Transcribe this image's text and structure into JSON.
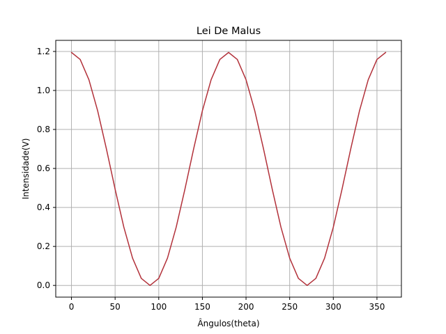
{
  "chart_data": {
    "type": "line",
    "title": "Lei De Malus",
    "xlabel": "Ângulos(theta)",
    "ylabel": "Intensidade(V)",
    "xlim": [
      -18,
      378
    ],
    "ylim": [
      -0.06,
      1.257
    ],
    "xticks": [
      0,
      50,
      100,
      150,
      200,
      250,
      300,
      350
    ],
    "yticks": [
      0.0,
      0.2,
      0.4,
      0.6,
      0.8,
      1.0,
      1.2
    ],
    "xtick_labels": [
      "0",
      "50",
      "100",
      "150",
      "200",
      "250",
      "300",
      "350"
    ],
    "ytick_labels": [
      "0.0",
      "0.2",
      "0.4",
      "0.6",
      "0.8",
      "1.0",
      "1.2"
    ],
    "grid": true,
    "series": [
      {
        "color": "#b2313a",
        "x": [
          0,
          10,
          20,
          30,
          40,
          50,
          60,
          70,
          80,
          90,
          100,
          110,
          120,
          130,
          140,
          150,
          160,
          170,
          180,
          190,
          200,
          210,
          220,
          230,
          240,
          250,
          260,
          270,
          280,
          290,
          300,
          310,
          320,
          330,
          340,
          350,
          360
        ],
        "y": [
          1.195,
          1.159,
          1.055,
          0.896,
          0.701,
          0.494,
          0.299,
          0.14,
          0.036,
          0.0,
          0.036,
          0.14,
          0.299,
          0.494,
          0.701,
          0.896,
          1.055,
          1.159,
          1.195,
          1.159,
          1.055,
          0.896,
          0.701,
          0.494,
          0.299,
          0.14,
          0.036,
          0.0,
          0.036,
          0.14,
          0.299,
          0.494,
          0.701,
          0.896,
          1.055,
          1.159,
          1.195
        ]
      }
    ],
    "colors": {
      "grid": "#b0b0b0",
      "axis": "#000000",
      "background": "#ffffff"
    }
  }
}
